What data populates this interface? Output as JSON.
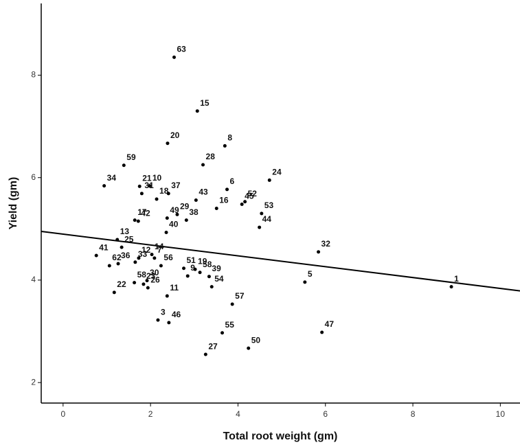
{
  "chart_data": {
    "type": "scatter",
    "x_label": "Total root weight (gm)",
    "y_label": "Yield (gm)",
    "point_labels": [
      "63",
      "15",
      "20",
      "8",
      "28",
      "59",
      "24",
      "34",
      "21",
      "10",
      "31",
      "6",
      "18",
      "37",
      "52",
      "43",
      "45",
      "16",
      "53",
      "17",
      "42",
      "49",
      "29",
      "38",
      "44",
      "40",
      "13",
      "32",
      "25",
      "41",
      "62",
      "36",
      "12",
      "14",
      "7",
      "33",
      "56",
      "51",
      "19",
      "58",
      "9",
      "39",
      "30",
      "58",
      "23",
      "26",
      "22",
      "54",
      "5",
      "1",
      "11",
      "57",
      "3",
      "46",
      "55",
      "47",
      "50",
      "27"
    ],
    "x": [
      2.54,
      3.07,
      2.39,
      3.7,
      3.2,
      1.39,
      4.72,
      0.94,
      1.75,
      1.98,
      1.8,
      3.75,
      2.14,
      2.41,
      4.16,
      3.04,
      4.09,
      3.51,
      4.54,
      1.64,
      1.72,
      2.38,
      2.61,
      2.82,
      4.49,
      2.36,
      1.24,
      5.84,
      1.34,
      0.76,
      1.06,
      1.26,
      1.73,
      2.03,
      2.09,
      1.65,
      2.24,
      2.76,
      3.02,
      3.13,
      2.85,
      3.34,
      1.92,
      1.63,
      1.84,
      1.94,
      1.17,
      3.4,
      5.53,
      8.88,
      2.38,
      3.87,
      2.17,
      2.42,
      3.64,
      5.92,
      4.24,
      3.26
    ],
    "y": [
      8.35,
      7.3,
      6.67,
      6.62,
      6.25,
      6.24,
      5.95,
      5.84,
      5.83,
      5.84,
      5.69,
      5.77,
      5.58,
      5.69,
      5.53,
      5.56,
      5.48,
      5.4,
      5.3,
      5.17,
      5.15,
      5.21,
      5.28,
      5.17,
      5.03,
      4.93,
      4.79,
      4.55,
      4.64,
      4.48,
      4.28,
      4.32,
      4.43,
      4.5,
      4.43,
      4.35,
      4.28,
      4.23,
      4.21,
      4.15,
      4.08,
      4.07,
      3.99,
      3.95,
      3.92,
      3.85,
      3.76,
      3.87,
      3.96,
      3.87,
      3.69,
      3.53,
      3.22,
      3.17,
      2.97,
      2.98,
      2.67,
      2.55
    ],
    "color": "#000000",
    "fit_line": {
      "x": [
        -0.5,
        10.45
      ],
      "y": [
        4.95,
        3.79
      ]
    },
    "xlim": [
      -0.5,
      10.45
    ],
    "ylim": [
      1.6,
      9.4
    ],
    "xticks": [
      0,
      2,
      4,
      6,
      8,
      10
    ],
    "yticks": [
      2,
      4,
      6,
      8
    ]
  }
}
